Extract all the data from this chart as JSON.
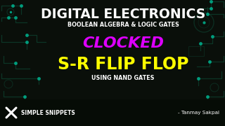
{
  "bg_color": "#0a0f0a",
  "title_text": "DIGITAL ELECTRONICS",
  "subtitle_text": "BOOLEAN ALGEBRA & LOGIC GATES",
  "clocked_text": "CLOCKED",
  "main_text": "S-R FLIP FLOP",
  "using_text": "USING NAND GATES",
  "brand_text": "SIMPLE SNIPPETS",
  "author_text": "- Tanmay Sakpal",
  "title_color": "#ffffff",
  "subtitle_color": "#ffffff",
  "clocked_color": "#dd00ff",
  "main_color": "#ffff00",
  "using_color": "#ffffff",
  "brand_color": "#ffffff",
  "author_color": "#ffffff",
  "teal_accent": "#00c8aa",
  "trace_color": "#0d3a2a",
  "node_color": "#00aa88"
}
